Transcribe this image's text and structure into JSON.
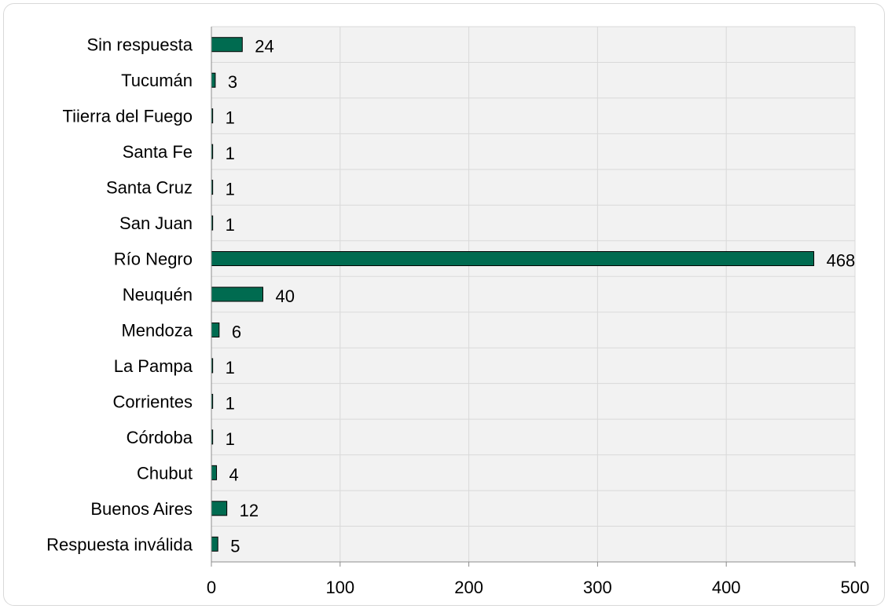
{
  "chart_data": {
    "type": "bar",
    "orientation": "horizontal",
    "categories": [
      "Sin respuesta",
      "Tucumán",
      "Tiierra del Fuego",
      "Santa Fe",
      "Santa Cruz",
      "San Juan",
      "Río Negro",
      "Neuquén",
      "Mendoza",
      "La Pampa",
      "Corrientes",
      "Córdoba",
      "Chubut",
      "Buenos Aires",
      "Respuesta inválida"
    ],
    "values": [
      24,
      3,
      1,
      1,
      1,
      1,
      468,
      40,
      6,
      1,
      1,
      1,
      4,
      12,
      5
    ],
    "xlim": [
      0,
      500
    ],
    "xticks": [
      "0",
      "100",
      "200",
      "300",
      "400",
      "500"
    ],
    "grid": true,
    "legend": "none",
    "colors": {
      "bar_fill": "#006b50",
      "bar_stroke": "#000000",
      "plot_background": "#f2f2f2",
      "gridline": "#d9d9d9"
    }
  }
}
